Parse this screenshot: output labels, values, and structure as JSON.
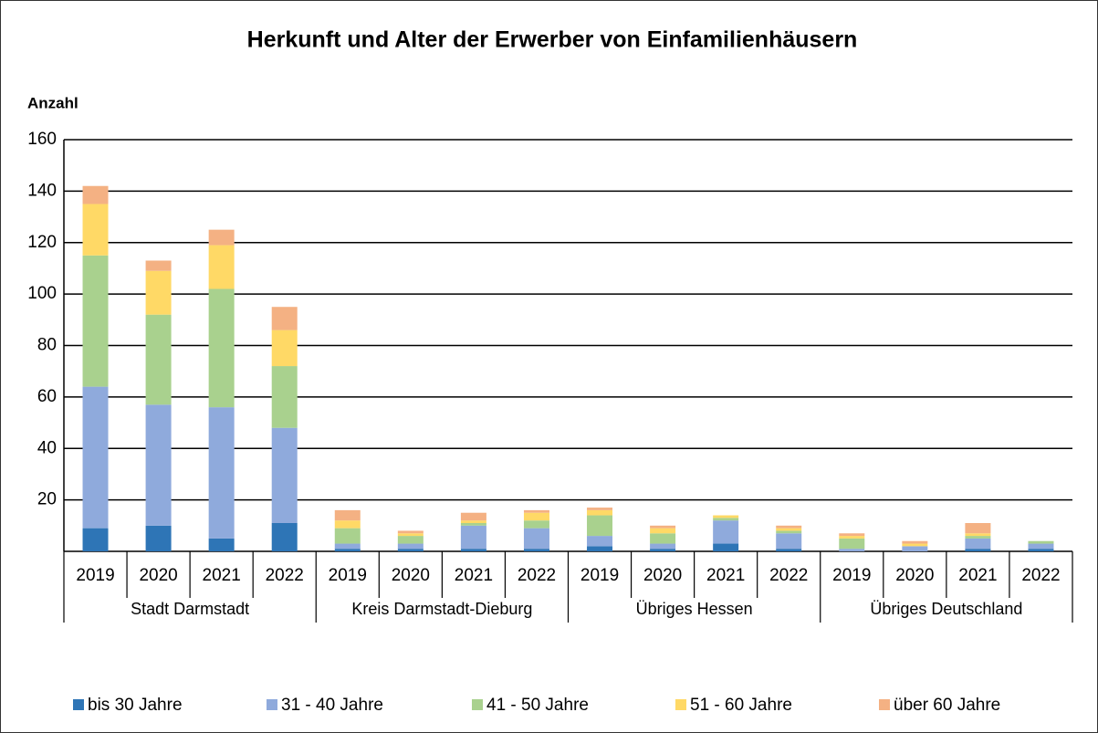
{
  "chart_data": {
    "type": "stacked_bar",
    "title": "Herkunft und Alter der Erwerber von Einfamilienhäusern",
    "y_label": "Anzahl",
    "categories": [
      "2019",
      "2020",
      "2021",
      "2022",
      "2019",
      "2020",
      "2021",
      "2022",
      "2019",
      "2020",
      "2021",
      "2022",
      "2019",
      "2020",
      "2021",
      "2022"
    ],
    "groups": [
      "Stadt Darmstadt",
      "Kreis Darmstadt-Dieburg",
      "Übriges Hessen",
      "Übriges Deutschland"
    ],
    "series": [
      {
        "name": "bis 30 Jahre",
        "color": "#2e75b6",
        "values": [
          9,
          10,
          5,
          11,
          1,
          1,
          1,
          1,
          2,
          1,
          3,
          1,
          0,
          0,
          1,
          1
        ]
      },
      {
        "name": "31 - 40 Jahre",
        "color": "#8faadc",
        "values": [
          55,
          47,
          51,
          37,
          2,
          2,
          9,
          8,
          4,
          2,
          9,
          6,
          1,
          2,
          4,
          2
        ]
      },
      {
        "name": "41 - 50 Jahre",
        "color": "#a9d18e",
        "values": [
          51,
          35,
          46,
          24,
          6,
          3,
          1,
          3,
          8,
          4,
          1,
          1,
          4,
          0,
          1,
          1
        ]
      },
      {
        "name": "51 - 60 Jahre",
        "color": "#ffd966",
        "values": [
          20,
          17,
          17,
          14,
          3,
          1,
          1,
          3,
          2,
          2,
          1,
          1,
          1,
          1,
          1,
          0
        ]
      },
      {
        "name": "über 60 Jahre",
        "color": "#f4b183",
        "values": [
          7,
          4,
          6,
          9,
          4,
          1,
          3,
          1,
          1,
          1,
          0,
          1,
          1,
          1,
          4,
          0
        ]
      }
    ],
    "ylim": [
      0,
      160
    ],
    "yticks": [
      20,
      40,
      60,
      80,
      100,
      120,
      140,
      160
    ],
    "grid": true
  }
}
